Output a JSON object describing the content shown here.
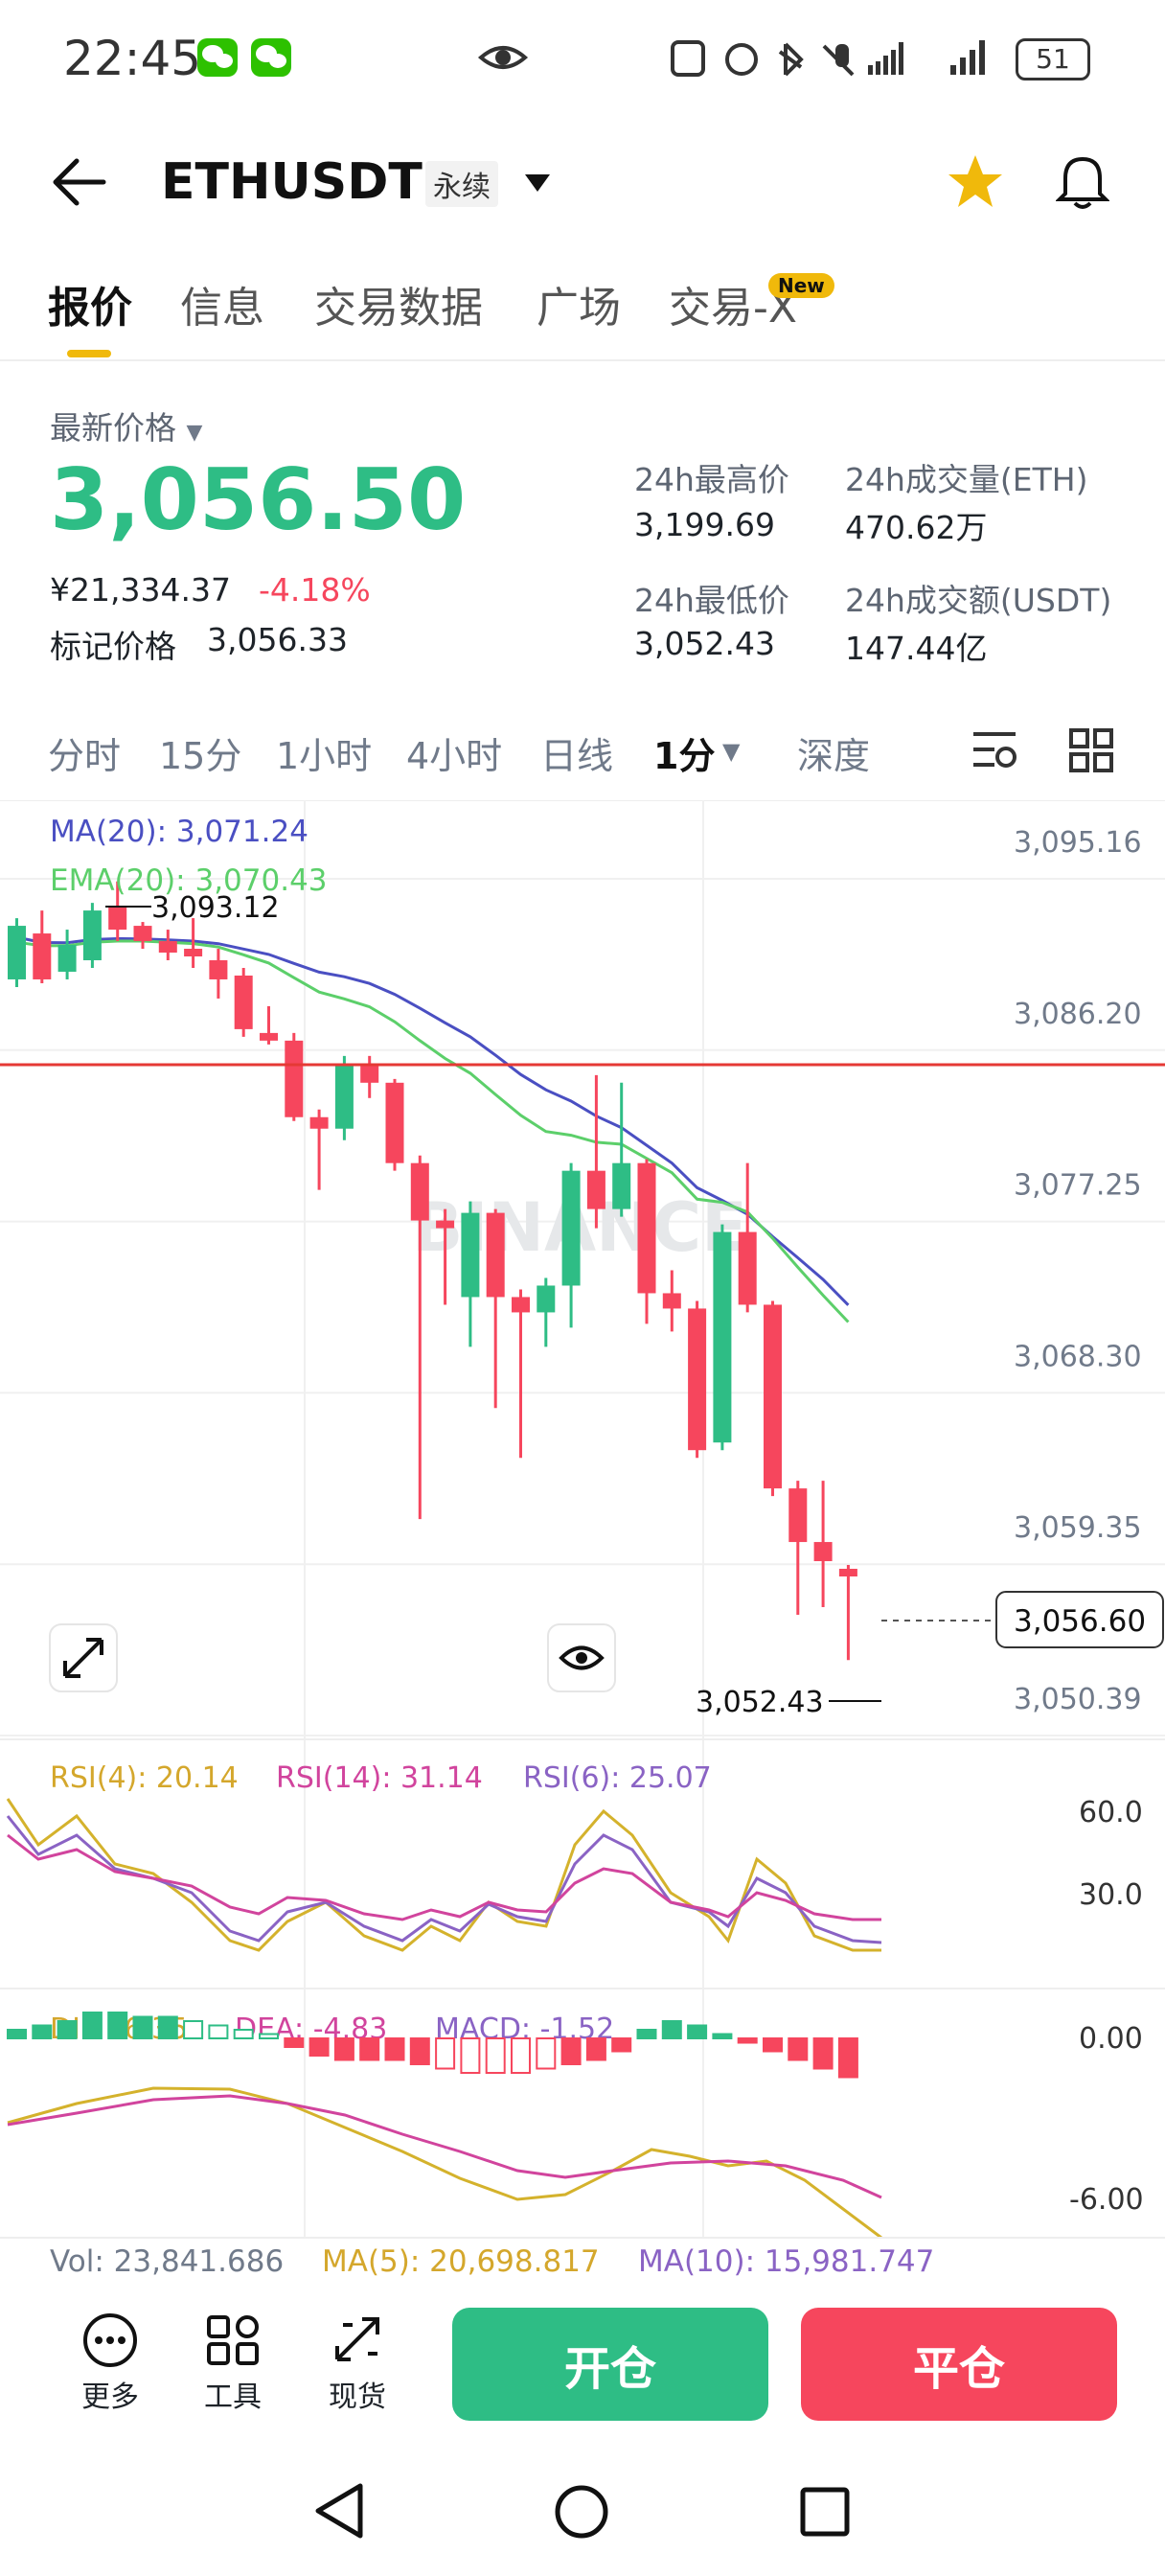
{
  "status_bar": {
    "time": "22:45",
    "battery": "51"
  },
  "header": {
    "symbol": "ETHUSDT",
    "contract_type": "永续"
  },
  "tabs": [
    {
      "label": "报价"
    },
    {
      "label": "信息"
    },
    {
      "label": "交易数据"
    },
    {
      "label": "广场"
    },
    {
      "label": "交易-X"
    }
  ],
  "new_badge": "New",
  "price": {
    "label": "最新价格",
    "last": "3,056.50",
    "cny": "¥21,334.37",
    "change": "-4.18%",
    "mark_label": "标记价格",
    "mark_value": "3,056.33"
  },
  "stats": {
    "high_label": "24h最高价",
    "high": "3,199.69",
    "vol_label": "24h成交量(ETH)",
    "vol": "470.62万",
    "low_label": "24h最低价",
    "low": "3,052.43",
    "amount_label": "24h成交额(USDT)",
    "amount": "147.44亿"
  },
  "intervals": [
    "分时",
    "15分",
    "1小时",
    "4小时",
    "日线",
    "1分",
    "深度"
  ],
  "chart": {
    "ma_label": "MA(20): 3,071.24",
    "ema_label": "EMA(20): 3,070.43",
    "high_marker": "3,093.12",
    "low_marker": "3,052.43",
    "current_price_tag": "3,056.60",
    "watermark": "BINANCE",
    "y_ticks": [
      "3,095.16",
      "3,086.20",
      "3,077.25",
      "3,068.30",
      "3,059.35",
      "3,050.39"
    ],
    "rsi_labels": [
      "RSI(4): 20.14",
      "RSI(14): 31.14",
      "RSI(6): 25.07"
    ],
    "rsi_ticks": [
      "60.0",
      "30.0"
    ],
    "macd_labels": [
      "DIF: -6.35",
      "DEA: -4.83",
      "MACD: -1.52"
    ],
    "macd_ticks": [
      "0.00",
      "-6.00"
    ],
    "vol_labels": [
      "Vol: 23,841.686",
      "MA(5): 20,698.817",
      "MA(10): 15,981.747"
    ]
  },
  "chart_data": {
    "type": "candlestick",
    "candles": [
      {
        "o": 3088.0,
        "c": 3090.8,
        "h": 3091.2,
        "l": 3087.6
      },
      {
        "o": 3090.4,
        "c": 3088.0,
        "h": 3091.6,
        "l": 3087.8
      },
      {
        "o": 3088.4,
        "c": 3089.8,
        "h": 3090.6,
        "l": 3088.0
      },
      {
        "o": 3089.0,
        "c": 3091.6,
        "h": 3092.0,
        "l": 3088.6
      },
      {
        "o": 3091.8,
        "c": 3090.6,
        "h": 3093.12,
        "l": 3090.0
      },
      {
        "o": 3090.8,
        "c": 3090.0,
        "h": 3091.0,
        "l": 3089.6
      },
      {
        "o": 3090.0,
        "c": 3089.4,
        "h": 3090.6,
        "l": 3089.0
      },
      {
        "o": 3089.6,
        "c": 3089.2,
        "h": 3091.2,
        "l": 3088.6
      },
      {
        "o": 3089.0,
        "c": 3088.0,
        "h": 3089.6,
        "l": 3087.0
      },
      {
        "o": 3088.2,
        "c": 3085.4,
        "h": 3088.6,
        "l": 3085.0
      },
      {
        "o": 3085.2,
        "c": 3084.8,
        "h": 3086.6,
        "l": 3084.6
      },
      {
        "o": 3084.8,
        "c": 3080.8,
        "h": 3085.2,
        "l": 3080.6
      },
      {
        "o": 3080.8,
        "c": 3080.2,
        "h": 3081.2,
        "l": 3077.0
      },
      {
        "o": 3080.2,
        "c": 3083.6,
        "h": 3084.0,
        "l": 3079.6
      },
      {
        "o": 3083.6,
        "c": 3082.6,
        "h": 3084.0,
        "l": 3081.8
      },
      {
        "o": 3082.6,
        "c": 3078.4,
        "h": 3082.8,
        "l": 3078.0
      },
      {
        "o": 3078.4,
        "c": 3075.4,
        "h": 3078.8,
        "l": 3059.8
      },
      {
        "o": 3075.4,
        "c": 3075.0,
        "h": 3076.0,
        "l": 3071.0
      },
      {
        "o": 3071.4,
        "c": 3075.8,
        "h": 3076.4,
        "l": 3068.8
      },
      {
        "o": 3075.8,
        "c": 3071.4,
        "h": 3076.0,
        "l": 3065.6
      },
      {
        "o": 3071.4,
        "c": 3070.6,
        "h": 3071.8,
        "l": 3063.0
      },
      {
        "o": 3070.6,
        "c": 3072.0,
        "h": 3072.4,
        "l": 3068.8
      },
      {
        "o": 3072.0,
        "c": 3078.0,
        "h": 3078.4,
        "l": 3069.8
      },
      {
        "o": 3078.0,
        "c": 3076.0,
        "h": 3083.0,
        "l": 3075.0
      },
      {
        "o": 3076.0,
        "c": 3078.4,
        "h": 3082.6,
        "l": 3075.6
      },
      {
        "o": 3078.4,
        "c": 3071.6,
        "h": 3078.6,
        "l": 3070.0
      },
      {
        "o": 3071.6,
        "c": 3070.8,
        "h": 3072.8,
        "l": 3069.6
      },
      {
        "o": 3070.8,
        "c": 3063.4,
        "h": 3071.2,
        "l": 3063.0
      },
      {
        "o": 3063.8,
        "c": 3074.8,
        "h": 3075.2,
        "l": 3063.4
      },
      {
        "o": 3074.8,
        "c": 3071.0,
        "h": 3078.4,
        "l": 3070.6
      },
      {
        "o": 3071.0,
        "c": 3061.4,
        "h": 3071.2,
        "l": 3061.0
      },
      {
        "o": 3061.4,
        "c": 3058.6,
        "h": 3061.8,
        "l": 3054.8
      },
      {
        "o": 3058.6,
        "c": 3057.6,
        "h": 3061.8,
        "l": 3055.2
      },
      {
        "o": 3057.2,
        "c": 3056.8,
        "h": 3057.4,
        "l": 3052.43
      }
    ],
    "y_range": [
      3050.39,
      3095.16
    ]
  },
  "bottom": {
    "tools": [
      {
        "label": "更多"
      },
      {
        "label": "工具"
      },
      {
        "label": "现货"
      }
    ],
    "open_label": "开仓",
    "close_label": "平仓"
  },
  "colors": {
    "up": "#2ebd85",
    "down": "#f6465d",
    "accent": "#f0b90b"
  }
}
